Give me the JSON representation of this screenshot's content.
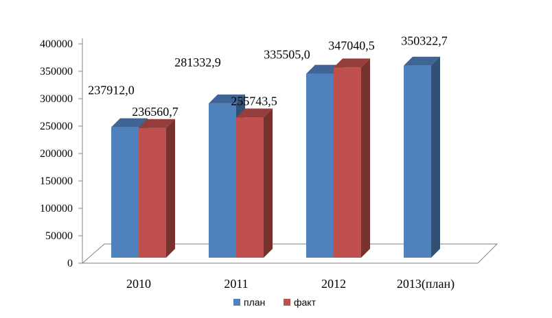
{
  "chart_data": {
    "type": "bar",
    "categories": [
      "2010",
      "2011",
      "2012",
      "2013(план)"
    ],
    "series": [
      {
        "name": "план",
        "color": "#4F81BD",
        "values": [
          237912.0,
          281332.9,
          335505.0,
          350322.7
        ],
        "labels": [
          "237912,0",
          "281332,9",
          "335505,0",
          "350322,7"
        ]
      },
      {
        "name": "факт",
        "color": "#C0504D",
        "values": [
          236560.7,
          255743.5,
          347040.5,
          null
        ],
        "labels": [
          "236560,7",
          "255743,5",
          "347040,5",
          null
        ]
      }
    ],
    "y_ticks": [
      "0",
      "50000",
      "100000",
      "150000",
      "200000",
      "250000",
      "300000",
      "350000",
      "400000"
    ],
    "ylim": [
      0,
      400000
    ],
    "grid": false,
    "legend_position": "bottom",
    "three_d": true
  }
}
